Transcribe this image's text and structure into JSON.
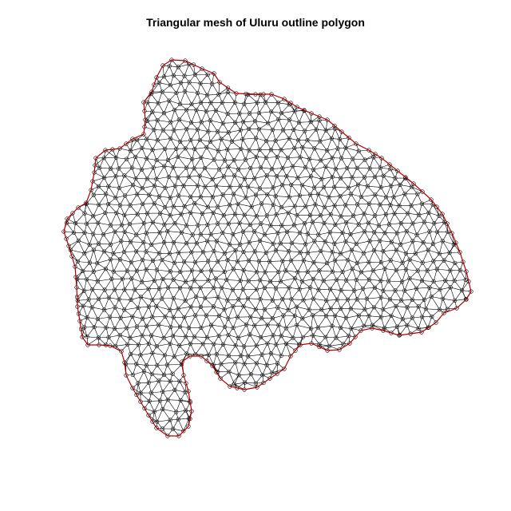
{
  "figure": {
    "title": "Triangular mesh of Uluru outline polygon"
  },
  "colors": {
    "background": "#ffffff",
    "mesh_edges": "#000000",
    "mesh_nodes": "#000000",
    "boundary": "#b00000"
  }
}
